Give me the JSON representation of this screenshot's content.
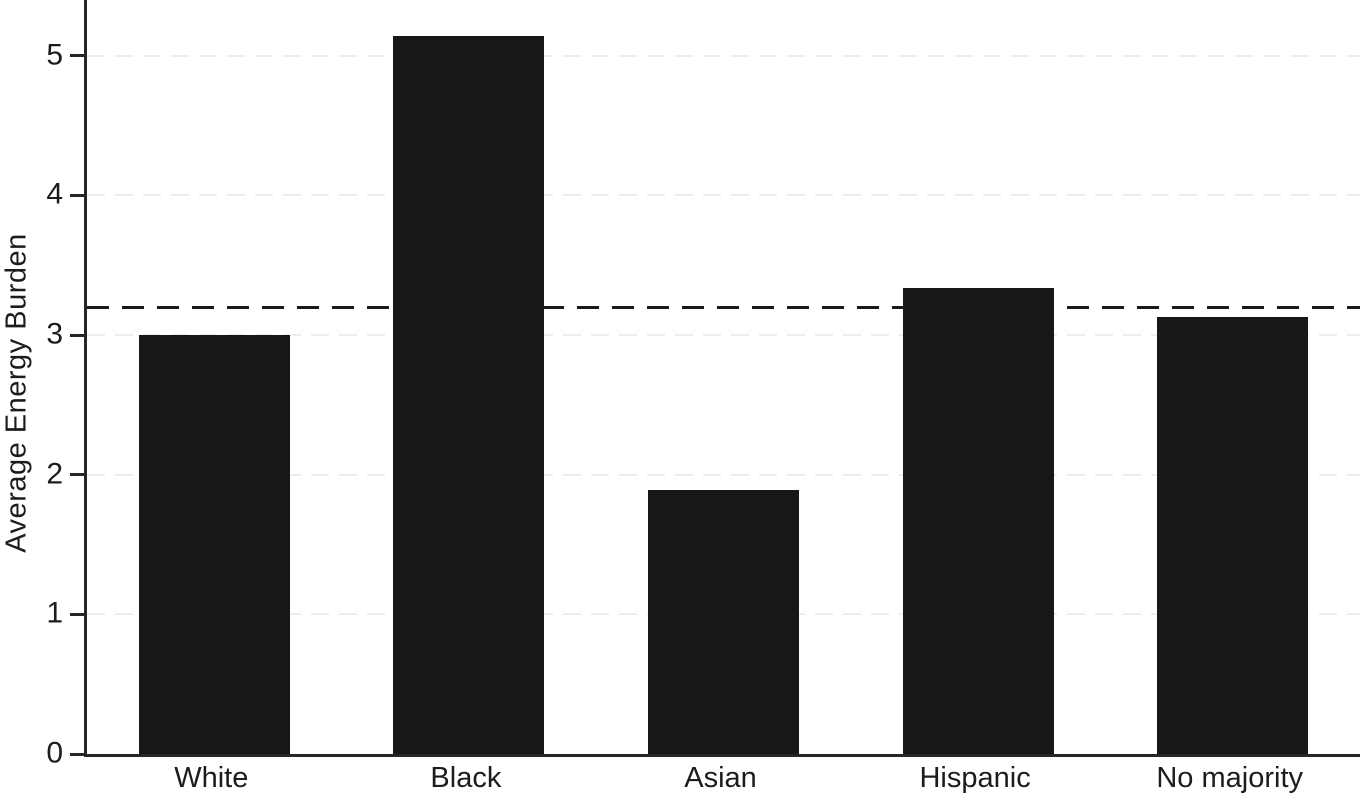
{
  "chart_data": {
    "type": "bar",
    "title": "",
    "categories": [
      "White",
      "Black",
      "Asian",
      "Hispanic",
      "No majority"
    ],
    "values": [
      3.0,
      5.14,
      1.89,
      3.34,
      3.13
    ],
    "xlabel": "",
    "ylabel": "Average Energy Burden",
    "ylim": [
      0,
      5.4
    ],
    "yticks": [
      0,
      1,
      2,
      3,
      4,
      5
    ],
    "reference_line_value": 3.2,
    "reference_line_style": "dashed",
    "grid": "horizontal dashed gridlines at integer ticks",
    "legend": "none",
    "bar_color": "#171717",
    "axis_color": "#262626",
    "grid_color": "#ededed",
    "reference_line_color": "#1a1a1a",
    "background_color": "#ffffff"
  }
}
